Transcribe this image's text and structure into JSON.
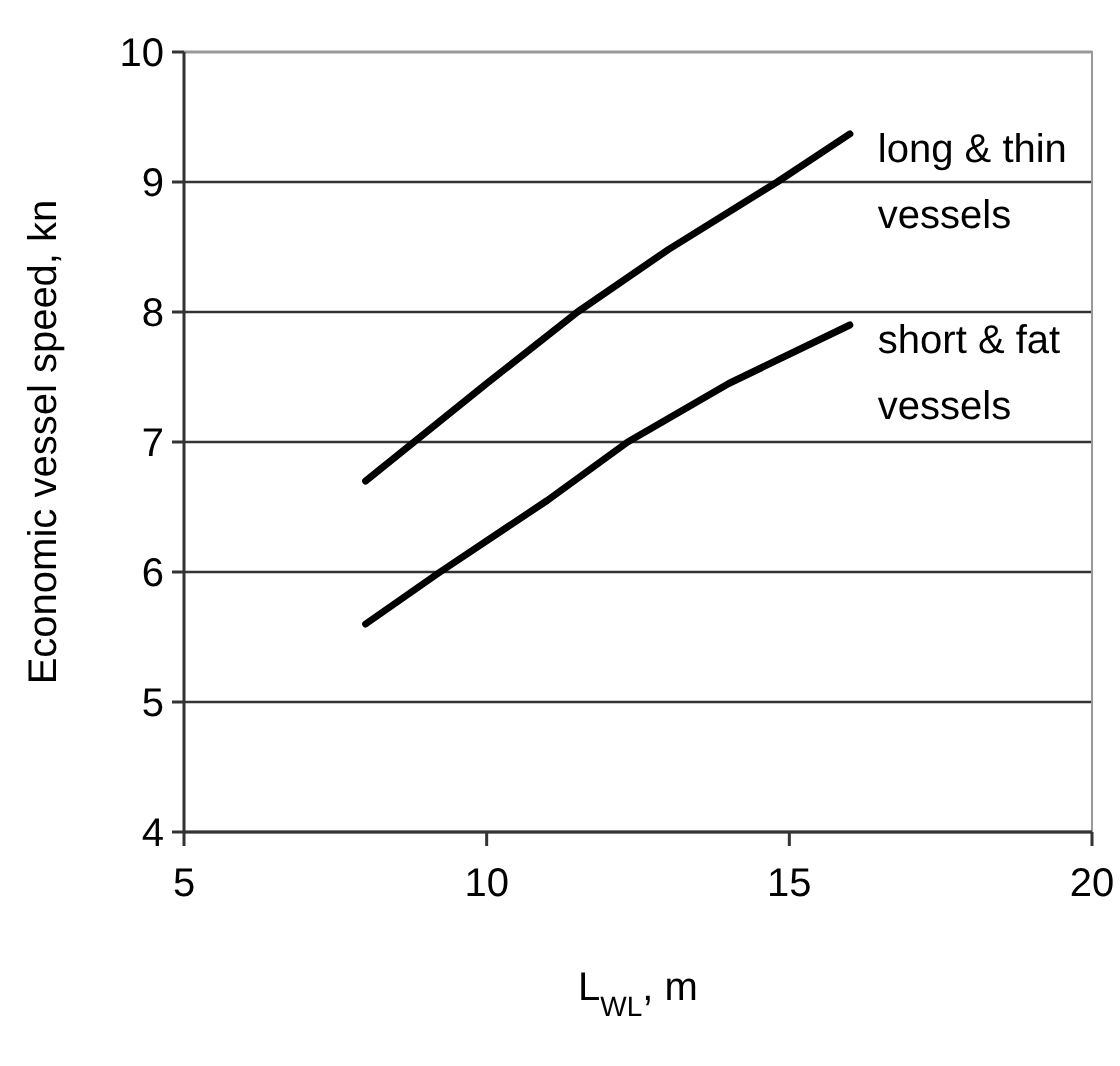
{
  "chart_data": {
    "type": "line",
    "xlabel": "L$_{WL}$, m",
    "ylabel": "Economic vessel speed, kn",
    "series": [
      {
        "name": "long & thin vessels",
        "color": "#000000",
        "x": [
          8,
          8.8,
          10,
          11.5,
          13,
          14.8,
          16
        ],
        "values": [
          6.7,
          7,
          7.45,
          8,
          8.48,
          9,
          9.37
        ]
      },
      {
        "name": "short & fat vessels",
        "color": "#000000",
        "x": [
          8,
          9.23,
          11,
          12.33,
          14,
          16
        ],
        "values": [
          5.6,
          6,
          6.55,
          7,
          7.45,
          7.9
        ]
      }
    ],
    "xlim": [
      5,
      20
    ],
    "ylim": [
      4,
      10
    ],
    "xticks": [
      5,
      10,
      15,
      20
    ],
    "yticks": [
      4,
      5,
      6,
      7,
      8,
      9,
      10
    ],
    "grid": "y",
    "legend": false,
    "marker": "none",
    "line_style": "solid"
  }
}
